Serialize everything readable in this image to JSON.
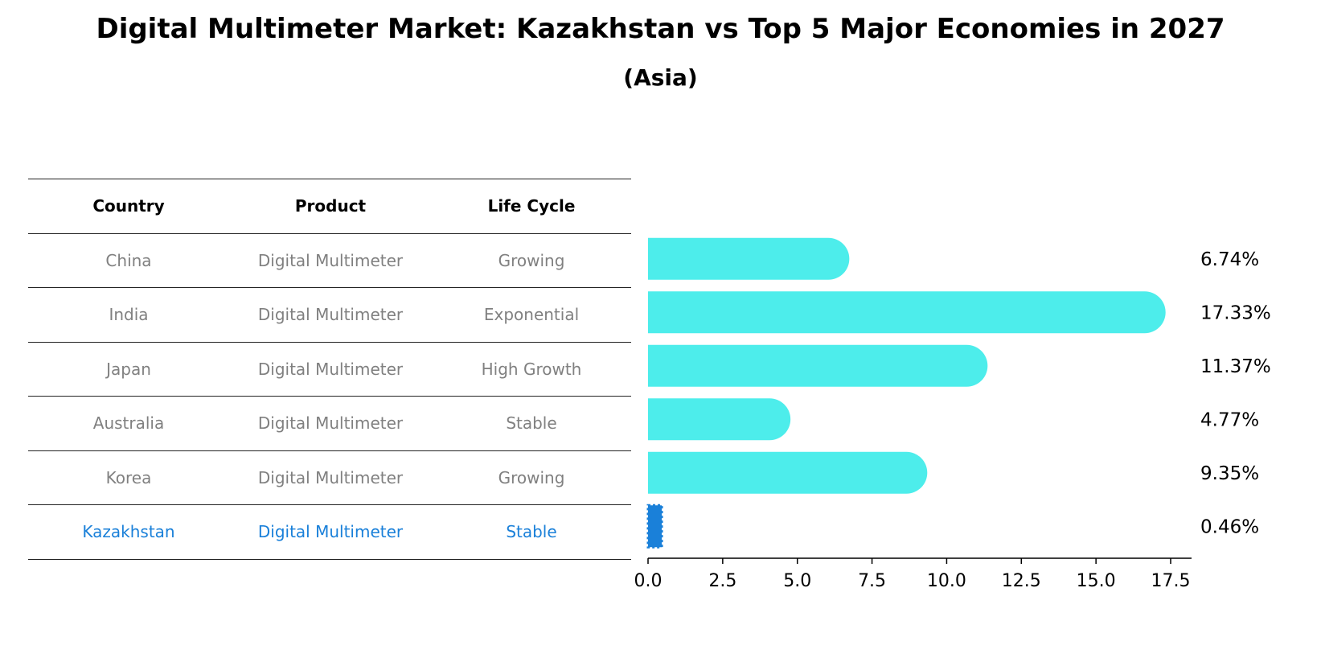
{
  "header": {
    "title": "Digital Multimeter Market: Kazakhstan vs Top 5 Major Economies in 2027",
    "subtitle": "(Asia)"
  },
  "table": {
    "columns": [
      "Country",
      "Product",
      "Life Cycle"
    ],
    "rows": [
      {
        "country": "China",
        "product": "Digital Multimeter",
        "life_cycle": "Growing"
      },
      {
        "country": "India",
        "product": "Digital Multimeter",
        "life_cycle": "Exponential"
      },
      {
        "country": "Japan",
        "product": "Digital Multimeter",
        "life_cycle": "High Growth"
      },
      {
        "country": "Australia",
        "product": "Digital Multimeter",
        "life_cycle": "Stable"
      },
      {
        "country": "Korea",
        "product": "Digital Multimeter",
        "life_cycle": "Growing"
      },
      {
        "country": "Kazakhstan",
        "product": "Digital Multimeter",
        "life_cycle": "Stable"
      }
    ]
  },
  "colors": {
    "bar": "#4DEDEB",
    "highlight": "#1A80D9",
    "muted_text": "#808080"
  },
  "chart_data": {
    "type": "bar",
    "orientation": "horizontal",
    "categories": [
      "China",
      "India",
      "Japan",
      "Australia",
      "Korea",
      "Kazakhstan"
    ],
    "values": [
      6.74,
      17.33,
      11.37,
      4.77,
      9.35,
      0.46
    ],
    "value_labels": [
      "6.74%",
      "17.33%",
      "11.37%",
      "4.77%",
      "9.35%",
      "0.46%"
    ],
    "highlight_category": "Kazakhstan",
    "xlim": [
      0,
      18.2
    ],
    "xticks": [
      "0.0",
      "2.5",
      "5.0",
      "7.5",
      "10.0",
      "12.5",
      "15.0",
      "17.5"
    ],
    "xtick_values": [
      0,
      2.5,
      5,
      7.5,
      10,
      12.5,
      15,
      17.5
    ],
    "title": "Digital Multimeter Market: Kazakhstan vs Top 5 Major Economies in 2027",
    "subtitle": "(Asia)",
    "xlabel": "",
    "ylabel": ""
  }
}
